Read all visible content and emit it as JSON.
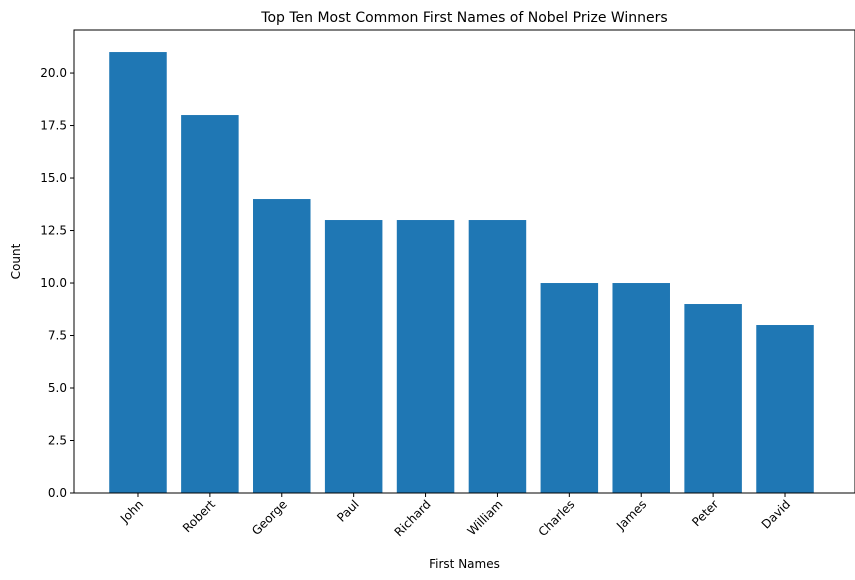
{
  "chart_data": {
    "type": "bar",
    "title": "Top Ten Most Common First Names of Nobel Prize Winners",
    "xlabel": "First Names",
    "ylabel": "Count",
    "categories": [
      "John",
      "Robert",
      "George",
      "Paul",
      "Richard",
      "William",
      "Charles",
      "James",
      "Peter",
      "David"
    ],
    "values": [
      21,
      18,
      14,
      13,
      13,
      13,
      10,
      10,
      9,
      8
    ],
    "ylim": [
      0,
      22.05
    ],
    "yticks": [
      0.0,
      2.5,
      5.0,
      7.5,
      10.0,
      12.5,
      15.0,
      17.5,
      20.0
    ],
    "ytick_labels": [
      "0.0",
      "2.5",
      "5.0",
      "7.5",
      "10.0",
      "12.5",
      "15.0",
      "17.5",
      "20.0"
    ],
    "bar_color": "#1f77b4",
    "grid": false,
    "xtick_rotation_deg": 45
  }
}
